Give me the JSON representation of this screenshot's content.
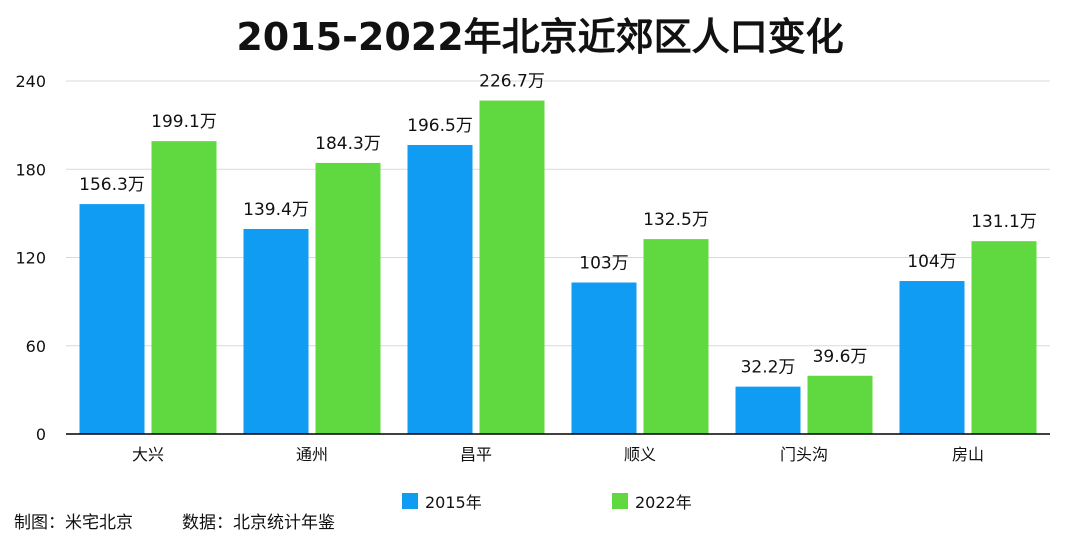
{
  "title": "2015-2022年北京近郊区人口变化",
  "credits": {
    "maker": "制图：米宅北京",
    "source": "数据：北京统计年鉴"
  },
  "colors": {
    "series_2015": "#109cf2",
    "series_2022": "#5fd93f",
    "grid": "#d9d9d9",
    "axis": "#000000"
  },
  "chart_data": {
    "type": "bar",
    "title": "2015-2022年北京近郊区人口变化",
    "categories": [
      "大兴",
      "通州",
      "昌平",
      "顺义",
      "门头沟",
      "房山"
    ],
    "series": [
      {
        "name": "2015年",
        "values": [
          156.3,
          139.4,
          196.5,
          103,
          32.2,
          104
        ],
        "labels": [
          "156.3万",
          "139.4万",
          "196.5万",
          "103万",
          "32.2万",
          "104万"
        ]
      },
      {
        "name": "2022年",
        "values": [
          199.1,
          184.3,
          226.7,
          132.5,
          39.6,
          131.1
        ],
        "labels": [
          "199.1万",
          "184.3万",
          "226.7万",
          "132.5万",
          "39.6万",
          "131.1万"
        ]
      }
    ],
    "yticks": [
      0,
      60,
      120,
      180,
      240
    ],
    "ylim": [
      0,
      240
    ],
    "grid": true,
    "legend": "bottom-center",
    "xlabel": "",
    "ylabel": ""
  }
}
